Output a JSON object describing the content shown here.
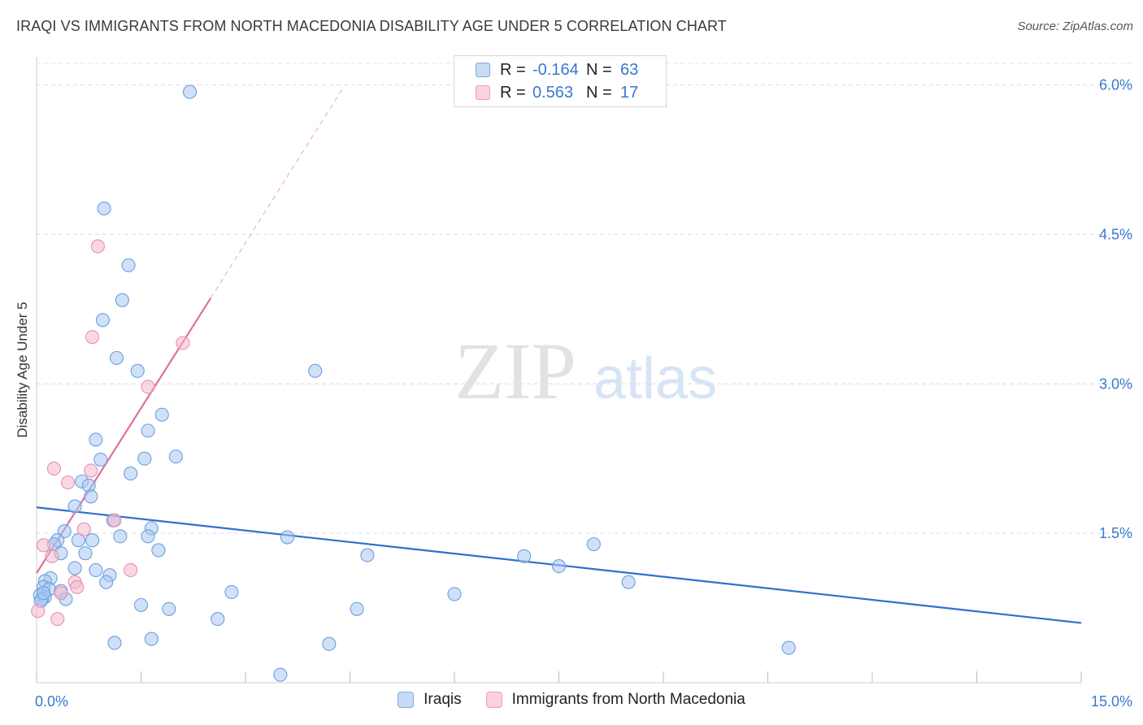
{
  "header": {
    "title": "IRAQI VS IMMIGRANTS FROM NORTH MACEDONIA DISABILITY AGE UNDER 5 CORRELATION CHART",
    "source": "Source: ZipAtlas.com"
  },
  "watermark": {
    "zip": "ZIP",
    "atlas": "atlas"
  },
  "legend": {
    "rows": [
      {
        "r_label": "R =",
        "r_value": "-0.164",
        "n_label": "N =",
        "n_value": "63",
        "color": "#a9c8f0"
      },
      {
        "r_label": "R =",
        "r_value": "0.563",
        "n_label": "N =",
        "n_value": "17",
        "color": "#f4b8cc"
      }
    ]
  },
  "bottom_legend": {
    "items": [
      {
        "label": "Iraqis",
        "color": "#a9c8f0"
      },
      {
        "label": "Immigrants from North Macedonia",
        "color": "#f4b8cc"
      }
    ]
  },
  "chart_data": {
    "type": "scatter",
    "title": "IRAQI VS IMMIGRANTS FROM NORTH MACEDONIA DISABILITY AGE UNDER 5 CORRELATION CHART",
    "xlabel": "",
    "ylabel": "Disability Age Under 5",
    "xlim": [
      0,
      15
    ],
    "ylim": [
      0,
      6.2
    ],
    "x_tick_labels": [
      "0.0%",
      "15.0%"
    ],
    "y_ticks": [
      1.5,
      3.0,
      4.5,
      6.0
    ],
    "y_tick_labels": [
      "1.5%",
      "3.0%",
      "4.5%",
      "6.0%"
    ],
    "grid": true,
    "series": [
      {
        "name": "Iraqis",
        "color": "#6b9fe0",
        "fill": "#a9c8f0",
        "points": [
          [
            2.2,
            5.93
          ],
          [
            0.97,
            4.76
          ],
          [
            1.32,
            4.19
          ],
          [
            1.23,
            3.84
          ],
          [
            0.95,
            3.64
          ],
          [
            1.15,
            3.26
          ],
          [
            1.45,
            3.13
          ],
          [
            4.0,
            3.13
          ],
          [
            1.8,
            2.69
          ],
          [
            1.6,
            2.53
          ],
          [
            0.85,
            2.44
          ],
          [
            0.92,
            2.24
          ],
          [
            1.55,
            2.25
          ],
          [
            2.0,
            2.27
          ],
          [
            1.35,
            2.1
          ],
          [
            0.65,
            2.02
          ],
          [
            0.75,
            1.98
          ],
          [
            0.78,
            1.87
          ],
          [
            0.55,
            1.77
          ],
          [
            1.1,
            1.63
          ],
          [
            1.65,
            1.55
          ],
          [
            0.4,
            1.52
          ],
          [
            1.2,
            1.47
          ],
          [
            1.6,
            1.47
          ],
          [
            3.6,
            1.46
          ],
          [
            0.3,
            1.43
          ],
          [
            0.6,
            1.43
          ],
          [
            0.8,
            1.43
          ],
          [
            0.25,
            1.39
          ],
          [
            8.0,
            1.39
          ],
          [
            1.75,
            1.33
          ],
          [
            0.35,
            1.3
          ],
          [
            0.7,
            1.3
          ],
          [
            4.75,
            1.28
          ],
          [
            7.0,
            1.27
          ],
          [
            7.5,
            1.17
          ],
          [
            0.55,
            1.15
          ],
          [
            0.85,
            1.13
          ],
          [
            1.05,
            1.08
          ],
          [
            0.2,
            1.05
          ],
          [
            0.12,
            1.02
          ],
          [
            1.0,
            1.01
          ],
          [
            8.5,
            1.01
          ],
          [
            0.1,
            0.96
          ],
          [
            0.18,
            0.94
          ],
          [
            0.35,
            0.92
          ],
          [
            2.8,
            0.91
          ],
          [
            6.0,
            0.89
          ],
          [
            0.05,
            0.88
          ],
          [
            0.12,
            0.86
          ],
          [
            0.08,
            0.84
          ],
          [
            0.42,
            0.84
          ],
          [
            1.5,
            0.78
          ],
          [
            1.9,
            0.74
          ],
          [
            4.6,
            0.74
          ],
          [
            2.6,
            0.64
          ],
          [
            1.65,
            0.44
          ],
          [
            1.12,
            0.4
          ],
          [
            4.2,
            0.39
          ],
          [
            10.8,
            0.35
          ],
          [
            3.5,
            0.08
          ],
          [
            0.06,
            0.82
          ],
          [
            0.1,
            0.9
          ]
        ],
        "trend": {
          "x": [
            0,
            15
          ],
          "y": [
            1.76,
            0.6
          ]
        }
      },
      {
        "name": "Immigrants from North Macedonia",
        "color": "#ea8fb0",
        "fill": "#f4b8cc",
        "points": [
          [
            0.88,
            4.38
          ],
          [
            0.8,
            3.47
          ],
          [
            2.1,
            3.41
          ],
          [
            1.6,
            2.97
          ],
          [
            0.25,
            2.15
          ],
          [
            0.78,
            2.13
          ],
          [
            0.45,
            2.01
          ],
          [
            1.12,
            1.63
          ],
          [
            0.68,
            1.54
          ],
          [
            0.1,
            1.38
          ],
          [
            0.22,
            1.27
          ],
          [
            1.35,
            1.13
          ],
          [
            0.55,
            1.01
          ],
          [
            0.58,
            0.96
          ],
          [
            0.35,
            0.9
          ],
          [
            0.3,
            0.64
          ],
          [
            0.02,
            0.72
          ]
        ],
        "trend": {
          "x": [
            0,
            2.5
          ],
          "y": [
            1.1,
            3.86
          ]
        },
        "trend_extended": {
          "x": [
            2.5,
            4.4
          ],
          "y": [
            3.86,
            5.97
          ]
        }
      }
    ]
  }
}
